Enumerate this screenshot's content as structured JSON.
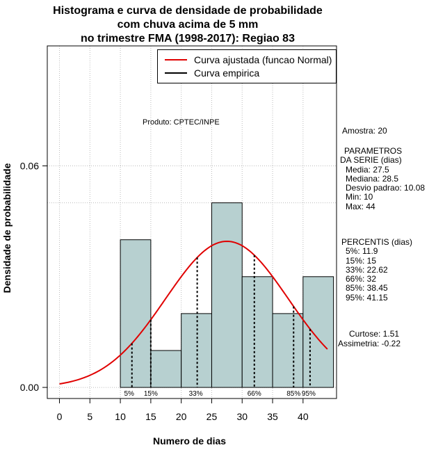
{
  "title": [
    "Histograma e curva de densidade de probabilidade",
    "com chuva acima de 5 mm",
    "no trimestre FMA (1998-2017): Regiao 83"
  ],
  "product_label": "Produto: CPTEC/INPE",
  "colors": {
    "bar_fill": "#b7d0d0",
    "normal_curve": "#e00000",
    "grid": "#bbbbbb"
  },
  "legend": [
    {
      "label": "Curva ajustada (funcao Normal)",
      "color": "#e00000"
    },
    {
      "label": "Curva empirica",
      "color": "#000000"
    }
  ],
  "side_panel": {
    "amostra": "Amostra: 20",
    "parametros": [
      "PARAMETROS",
      "DA SERIE (dias)",
      "Media: 27.5",
      "Mediana: 28.5",
      "Desvio padrao: 10.08",
      "Min: 10",
      "Max: 44"
    ],
    "percentis": [
      "PERCENTIS (dias)",
      "5%: 11.9",
      "15%: 15",
      "33%: 22.62",
      "66%: 32",
      "85%: 38.45",
      "95%: 41.15"
    ],
    "shape": [
      "Curtose: 1.51",
      "Assimetria: -0.22"
    ]
  },
  "chart_data": {
    "type": "bar",
    "xlabel": "Numero de dias",
    "ylabel": "Densidade de probabilidade",
    "xlim": [
      -2,
      45.5
    ],
    "ylim": [
      -0.003,
      0.0925
    ],
    "x_ticks": [
      0,
      5,
      10,
      15,
      20,
      25,
      30,
      35,
      40
    ],
    "y_ticks": [
      0.0,
      0.06
    ],
    "y_tick_labels": [
      "0.00",
      "0.06"
    ],
    "grid": true,
    "legend_position": "top-right",
    "bins": [
      {
        "start": 10,
        "end": 15,
        "density": 0.04
      },
      {
        "start": 15,
        "end": 20,
        "density": 0.01
      },
      {
        "start": 20,
        "end": 25,
        "density": 0.02
      },
      {
        "start": 25,
        "end": 30,
        "density": 0.05
      },
      {
        "start": 30,
        "end": 35,
        "density": 0.03
      },
      {
        "start": 35,
        "end": 40,
        "density": 0.02
      },
      {
        "start": 40,
        "end": 45,
        "density": 0.03
      }
    ],
    "reference_line_density": 0.05,
    "normal_fit": {
      "mean": 27.5,
      "sd": 10.08,
      "x_range": [
        0,
        44
      ]
    },
    "percentiles": [
      {
        "label": "5%",
        "value": 11.9
      },
      {
        "label": "15%",
        "value": 15
      },
      {
        "label": "33%",
        "value": 22.62
      },
      {
        "label": "66%",
        "value": 32
      },
      {
        "label": "85%",
        "value": 38.45
      },
      {
        "label": "95%",
        "value": 41.15
      }
    ]
  }
}
